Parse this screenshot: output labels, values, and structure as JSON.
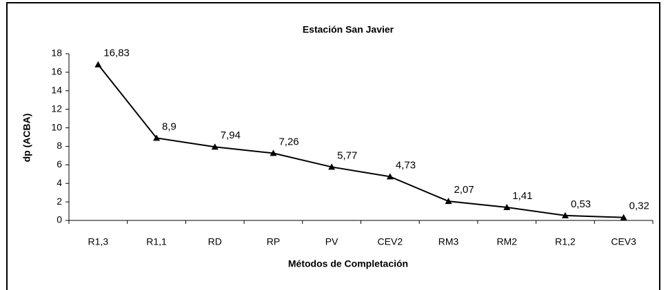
{
  "chart_data": {
    "type": "line",
    "title": "Estación San Javier",
    "x_label": "Métodos de Completación",
    "y_label": "dp (ACBA)",
    "categories": [
      "R1,3",
      "R1,1",
      "RD",
      "RP",
      "PV",
      "CEV2",
      "RM3",
      "RM2",
      "R1,2",
      "CEV3"
    ],
    "values": [
      16.83,
      8.9,
      7.94,
      7.26,
      5.77,
      4.73,
      2.07,
      1.41,
      0.53,
      0.32
    ],
    "value_labels": [
      "16,83",
      "8,9",
      "7,94",
      "7,26",
      "5,77",
      "4,73",
      "2,07",
      "1,41",
      "0,53",
      "0,32"
    ],
    "color": "#000000",
    "ylim": [
      0,
      18
    ],
    "yticks": [
      0,
      2,
      4,
      6,
      8,
      10,
      12,
      14,
      16,
      18
    ]
  }
}
